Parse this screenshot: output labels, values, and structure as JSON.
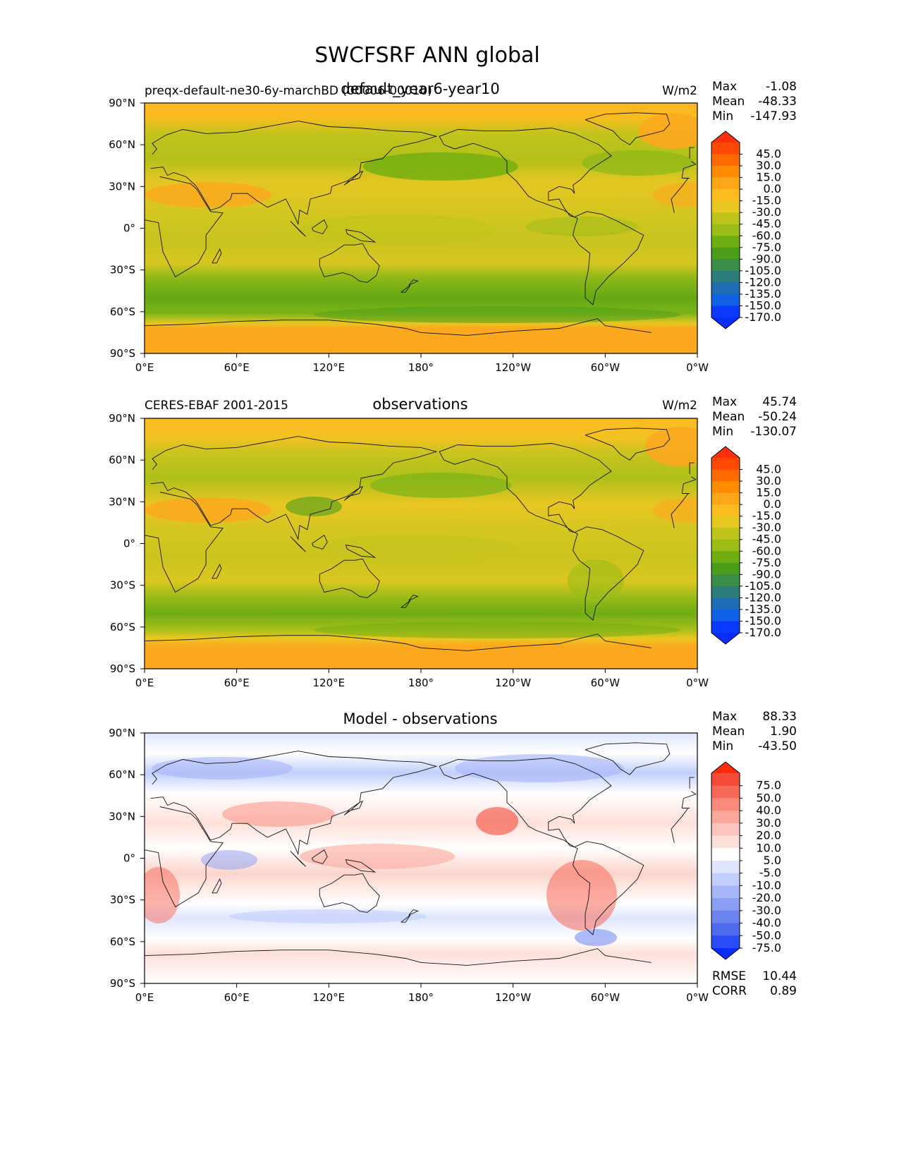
{
  "figure": {
    "title": "SWCFSRF ANN global"
  },
  "colorbars": {
    "abs": {
      "labels": [
        "45.0",
        "30.0",
        "15.0",
        "0.0",
        "-15.0",
        "-30.0",
        "-45.0",
        "-60.0",
        "-75.0",
        "-90.0",
        "-105.0",
        "-120.0",
        "-135.0",
        "-150.0",
        "-170.0"
      ],
      "colors": [
        "#fe2f0d",
        "#fe4a06",
        "#fe6a00",
        "#fe8c00",
        "#fea61a",
        "#fcbc1f",
        "#e8c820",
        "#bcc41a",
        "#9cbc18",
        "#6fae10",
        "#4c9e1a",
        "#3a8c48",
        "#2c7c7c",
        "#1e6cb4",
        "#1060e6",
        "#0a3afe",
        "#0a2cff"
      ]
    },
    "diff": {
      "labels": [
        "75.0",
        "50.0",
        "40.0",
        "30.0",
        "20.0",
        "10.0",
        "5.0",
        "-5.0",
        "-10.0",
        "-20.0",
        "-30.0",
        "-40.0",
        "-50.0",
        "-75.0"
      ],
      "colors": [
        "#fe2a0a",
        "#f54a38",
        "#f76a5a",
        "#f98a7c",
        "#fba89c",
        "#fcc4bc",
        "#fde0da",
        "#ffffff",
        "#dfe6fd",
        "#c2cefb",
        "#a6b6f8",
        "#8a9ef4",
        "#6c84f0",
        "#4e6aee",
        "#2a4cf6",
        "#0a2cff"
      ]
    }
  },
  "panels": [
    {
      "id": "model",
      "left_label": "preqx-default-ne30-6y-marchBD (00006-00010)",
      "title": "default_year6-year10",
      "units": "W/m2",
      "stats": {
        "max_label": "Max",
        "max": "-1.08",
        "mean_label": "Mean",
        "mean": "-48.33",
        "min_label": "Min",
        "min": "-147.93"
      },
      "colormap": "abs"
    },
    {
      "id": "observations",
      "left_label": "CERES-EBAF 2001-2015",
      "title": "observations",
      "units": "W/m2",
      "stats": {
        "max_label": "Max",
        "max": "45.74",
        "mean_label": "Mean",
        "mean": "-50.24",
        "min_label": "Min",
        "min": "-130.07"
      },
      "colormap": "abs"
    },
    {
      "id": "difference",
      "left_label": "",
      "title": "Model - observations",
      "units": "",
      "stats": {
        "max_label": "Max",
        "max": "88.33",
        "mean_label": "Mean",
        "mean": "1.90",
        "min_label": "Min",
        "min": "-43.50"
      },
      "extra": {
        "rmse_label": "RMSE",
        "rmse": "10.44",
        "corr_label": "CORR",
        "corr": "0.89"
      },
      "colormap": "diff"
    }
  ],
  "axes": {
    "x_ticks": [
      "0°E",
      "60°E",
      "120°E",
      "180°",
      "120°W",
      "60°W",
      "0°W"
    ],
    "y_ticks": [
      "90°N",
      "60°N",
      "30°N",
      "0°",
      "30°S",
      "60°S",
      "90°S"
    ]
  }
}
